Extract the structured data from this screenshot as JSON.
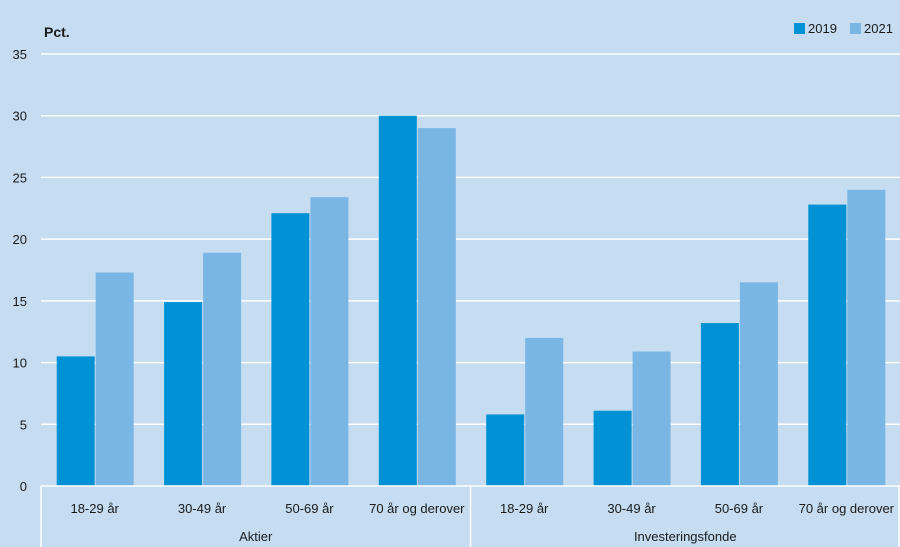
{
  "chart_data": {
    "type": "bar",
    "ylabel": "Pct.",
    "ylim": [
      0,
      35
    ],
    "yticks": [
      "0",
      "5",
      "10",
      "15",
      "20",
      "25",
      "30",
      "35"
    ],
    "grid": true,
    "legend_position": "top-right",
    "groups": [
      {
        "label": "Aktier",
        "categories": [
          "18-29 år",
          "30-49 år",
          "50-69 år",
          "70 år og derover"
        ]
      },
      {
        "label": "Investeringsfonde",
        "categories": [
          "18-29 år",
          "30-49 år",
          "50-69 år",
          "70 år og derover"
        ]
      }
    ],
    "categories": [
      "18-29 år",
      "30-49 år",
      "50-69 år",
      "70 år og derover",
      "18-29 år",
      "30-49 år",
      "50-69 år",
      "70 år og derover"
    ],
    "series": [
      {
        "name": "2019",
        "color": "#0092d4",
        "values": [
          10.5,
          14.9,
          22.1,
          30.0,
          5.8,
          6.1,
          13.2,
          22.8
        ]
      },
      {
        "name": "2021",
        "color": "#7ab6e4",
        "values": [
          17.3,
          18.9,
          23.4,
          29.0,
          12.0,
          10.9,
          16.5,
          24.0
        ]
      }
    ]
  }
}
